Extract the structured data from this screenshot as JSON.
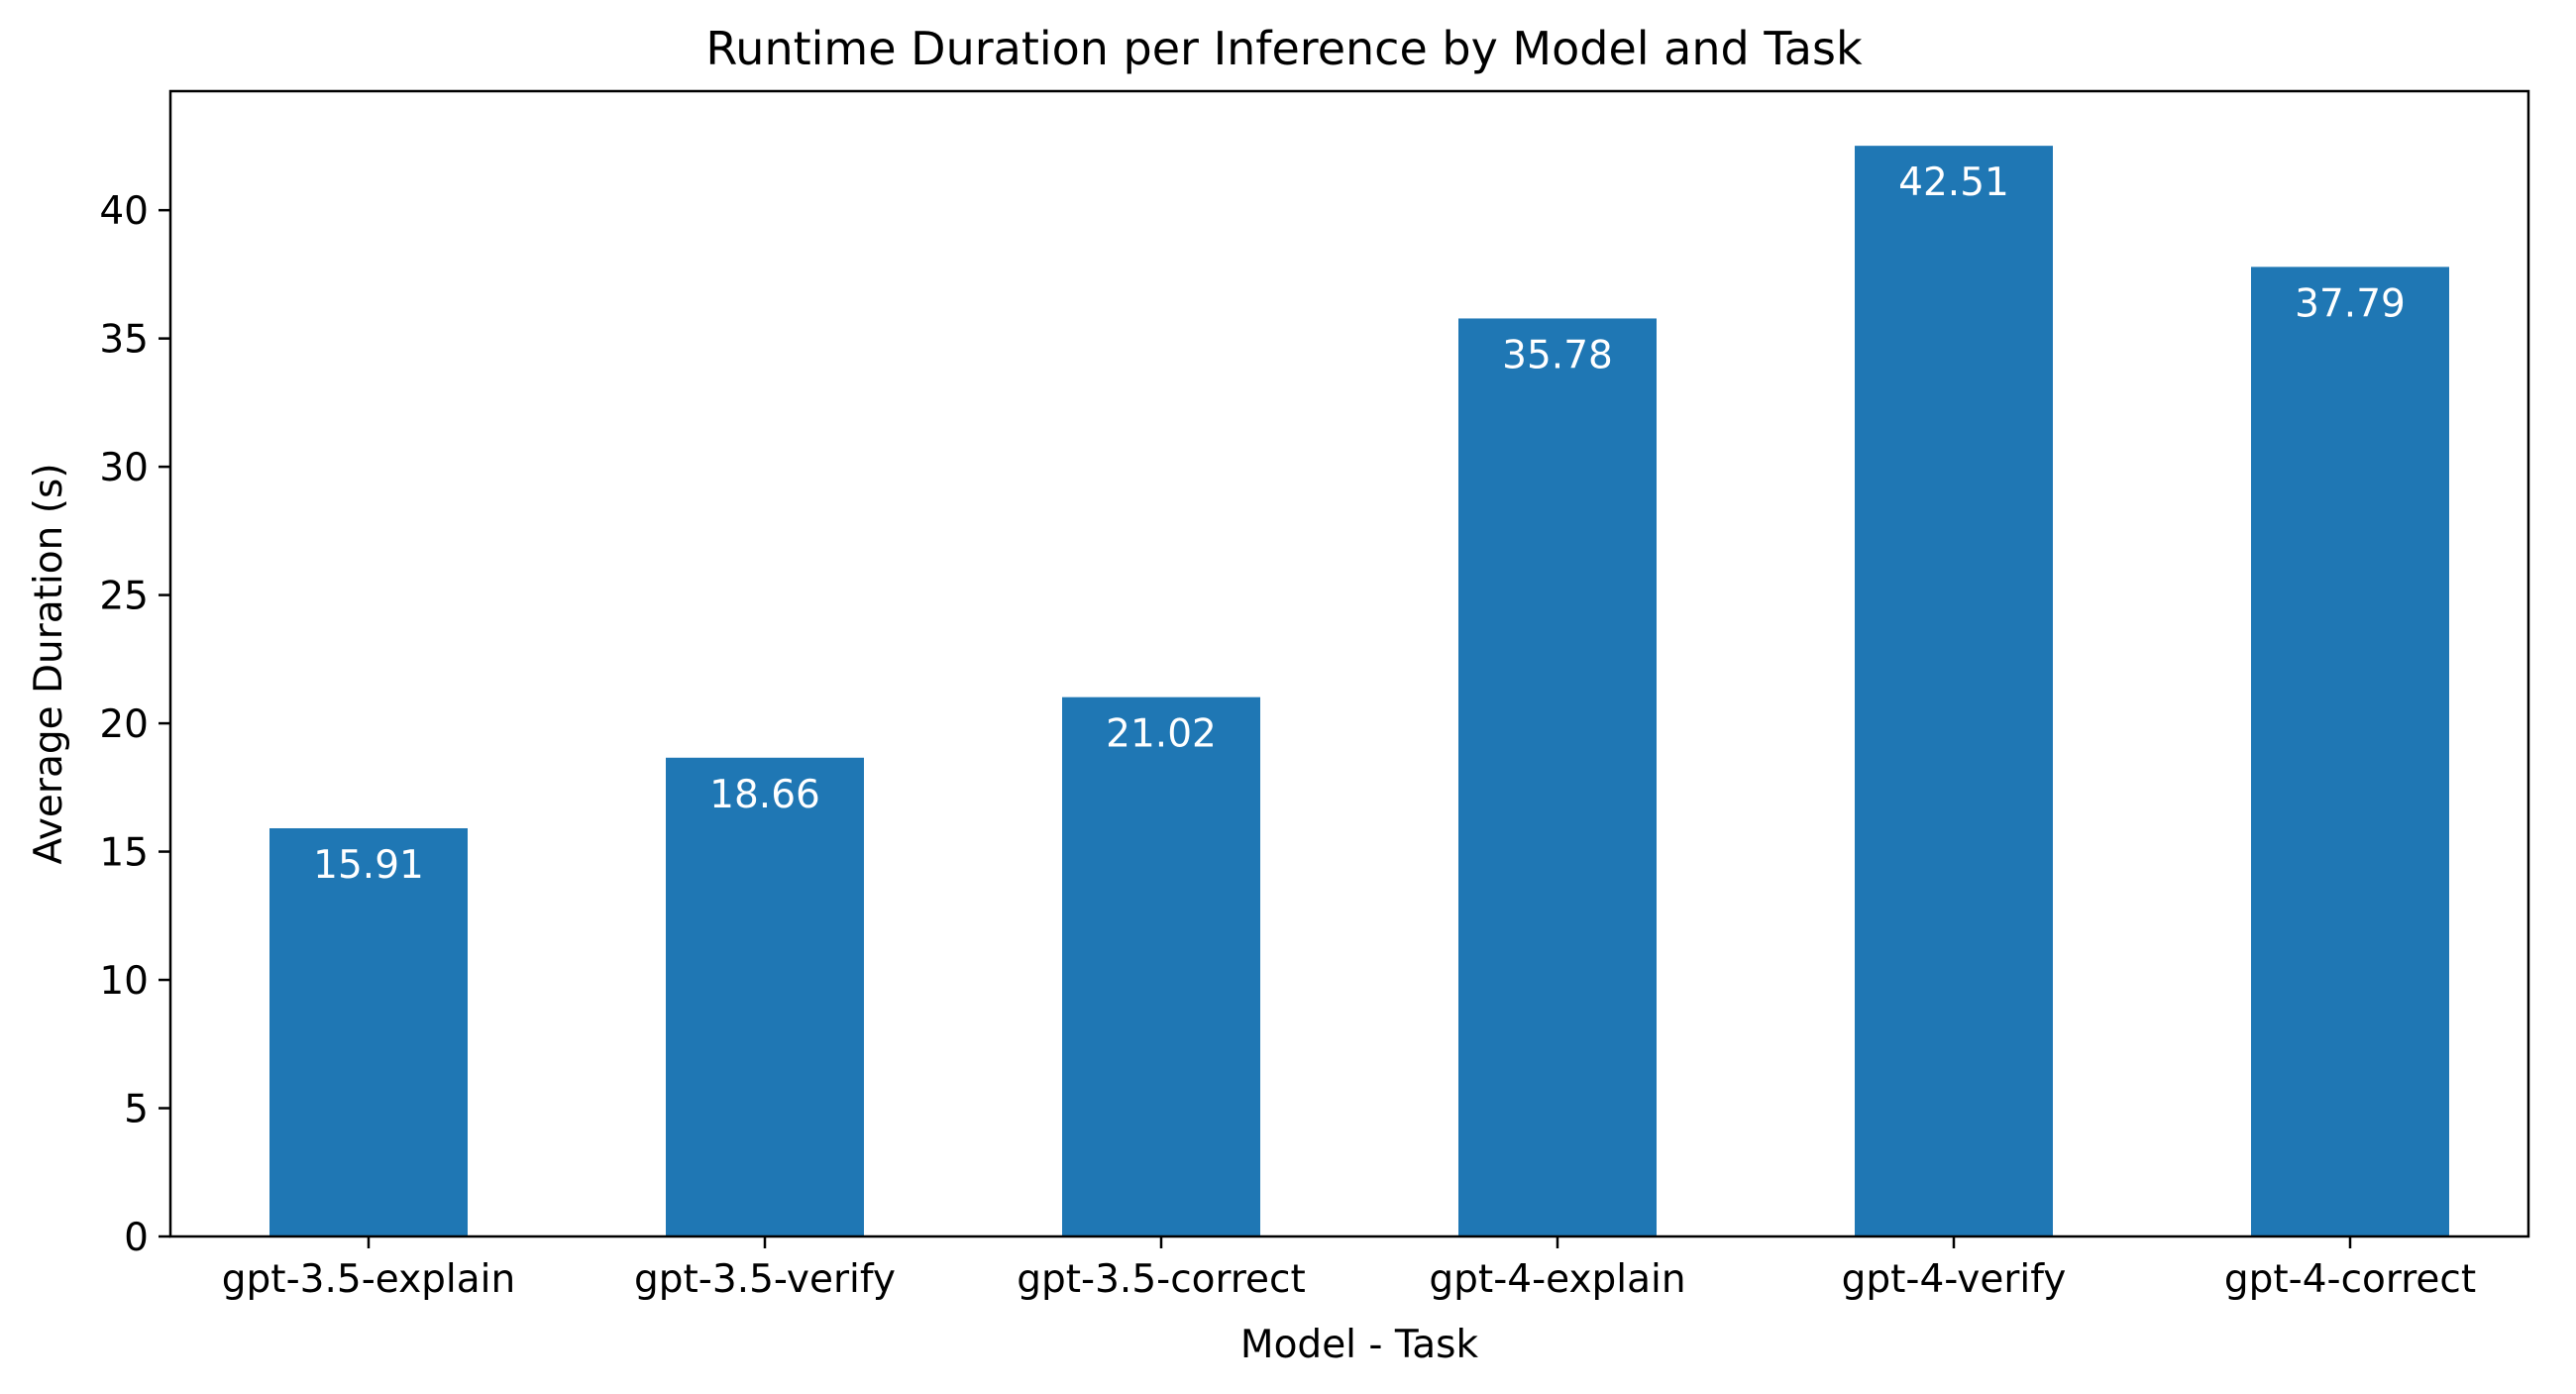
{
  "chart_data": {
    "type": "bar",
    "title": "Runtime Duration per Inference by Model and Task",
    "xlabel": "Model - Task",
    "ylabel": "Average Duration (s)",
    "categories": [
      "gpt-3.5-explain",
      "gpt-3.5-verify",
      "gpt-3.5-correct",
      "gpt-4-explain",
      "gpt-4-verify",
      "gpt-4-correct"
    ],
    "values": [
      15.91,
      18.66,
      21.02,
      35.78,
      42.51,
      37.79
    ],
    "value_labels": [
      "15.91",
      "18.66",
      "21.02",
      "35.78",
      "42.51",
      "37.79"
    ],
    "yticks": [
      0,
      5,
      10,
      15,
      20,
      25,
      30,
      35,
      40
    ],
    "ytick_labels": [
      "0",
      "5",
      "10",
      "15",
      "20",
      "25",
      "30",
      "35",
      "40"
    ],
    "ylim": [
      0,
      44.64
    ],
    "grid": false,
    "legend": "none",
    "colors": {
      "bar": "#1f77b4",
      "bar_label": "#ffffff",
      "axes": "#000000"
    }
  }
}
